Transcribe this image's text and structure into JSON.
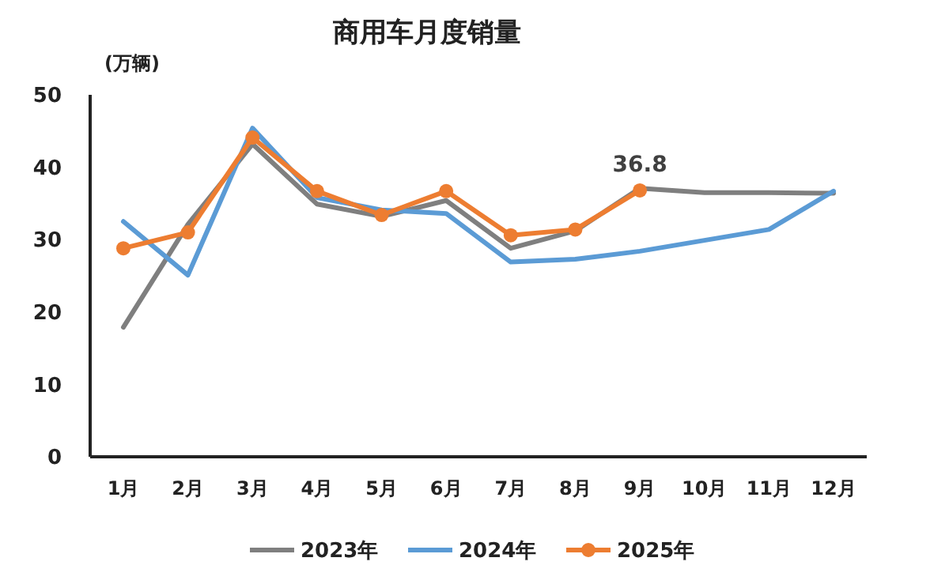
{
  "chart_data": {
    "type": "line",
    "title": "商用车月度销量",
    "ylabel": "(万辆)",
    "categories": [
      "1月",
      "2月",
      "3月",
      "4月",
      "5月",
      "6月",
      "7月",
      "8月",
      "9月",
      "10月",
      "11月",
      "12月"
    ],
    "ylim": [
      0,
      50
    ],
    "yticks": [
      0,
      10,
      20,
      30,
      40,
      50
    ],
    "grid": false,
    "legend": "bottom",
    "series": [
      {
        "name": "2023年",
        "color": "#7f7f7f",
        "marker": "none",
        "values": [
          17.9,
          32.1,
          43.2,
          34.9,
          33.2,
          35.4,
          28.8,
          31.2,
          37.1,
          36.5,
          36.5,
          36.4
        ]
      },
      {
        "name": "2024年",
        "color": "#5b9bd5",
        "marker": "none",
        "values": [
          32.5,
          25.1,
          45.4,
          35.8,
          34.1,
          33.6,
          26.9,
          27.3,
          28.4,
          29.9,
          31.4,
          36.7
        ]
      },
      {
        "name": "2025年",
        "color": "#ed7d31",
        "marker": "circle",
        "values": [
          28.8,
          31.0,
          44.1,
          36.7,
          33.4,
          36.7,
          30.6,
          31.4,
          36.8,
          null,
          null,
          null
        ],
        "value_labels": [
          null,
          null,
          null,
          null,
          null,
          null,
          null,
          null,
          "36.8",
          null,
          null,
          null
        ]
      }
    ]
  }
}
